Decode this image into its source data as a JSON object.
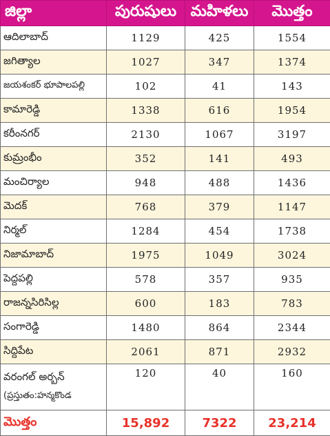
{
  "headers": {
    "district": "జిల్లా",
    "men": "పురుషులు",
    "women": "మహిళలు",
    "total": "మొత్తం"
  },
  "rows": [
    {
      "district": "ఆదిలాబాద్",
      "men": "1129",
      "women": "425",
      "total": "1554"
    },
    {
      "district": "జగిత్యాల",
      "men": "1027",
      "women": "347",
      "total": "1374"
    },
    {
      "district": "జయశంకర్ భూపాలపల్లి",
      "men": "102",
      "women": "41",
      "total": "143"
    },
    {
      "district": "కామారెడ్డి",
      "men": "1338",
      "women": "616",
      "total": "1954"
    },
    {
      "district": "కరీంనగర్",
      "men": "2130",
      "women": "1067",
      "total": "3197"
    },
    {
      "district": "కుమ్రంభీం",
      "men": "352",
      "women": "141",
      "total": "493"
    },
    {
      "district": "మంచిర్యాల",
      "men": "948",
      "women": "488",
      "total": "1436"
    },
    {
      "district": "మెదక్",
      "men": "768",
      "women": "379",
      "total": "1147"
    },
    {
      "district": "నిర్మల్",
      "men": "1284",
      "women": "454",
      "total": "1738"
    },
    {
      "district": "నిజామాబాద్",
      "men": "1975",
      "women": "1049",
      "total": "3024"
    },
    {
      "district": "పెద్దపల్లి",
      "men": "578",
      "women": "357",
      "total": "935"
    },
    {
      "district": "రాజన్నసిరిసిల్ల",
      "men": "600",
      "women": "183",
      "total": "783"
    },
    {
      "district": "సంగారెడ్డి",
      "men": "1480",
      "women": "864",
      "total": "2344"
    },
    {
      "district": "సిద్దిపేట",
      "men": "2061",
      "women": "871",
      "total": "2932"
    },
    {
      "district": "వరంగల్ అర్బన్",
      "district_line2": "(ప్రస్తుతం:హన్మకొండ",
      "men": "120",
      "women": "40",
      "total": "160"
    }
  ],
  "totals": {
    "label": "మొత్తం",
    "men": "15,892",
    "women": "7322",
    "total": "23,214"
  },
  "colors": {
    "header_bg": "#d5158d",
    "stripe_bg": "#fdf6dd",
    "total_text": "#e8322a"
  }
}
